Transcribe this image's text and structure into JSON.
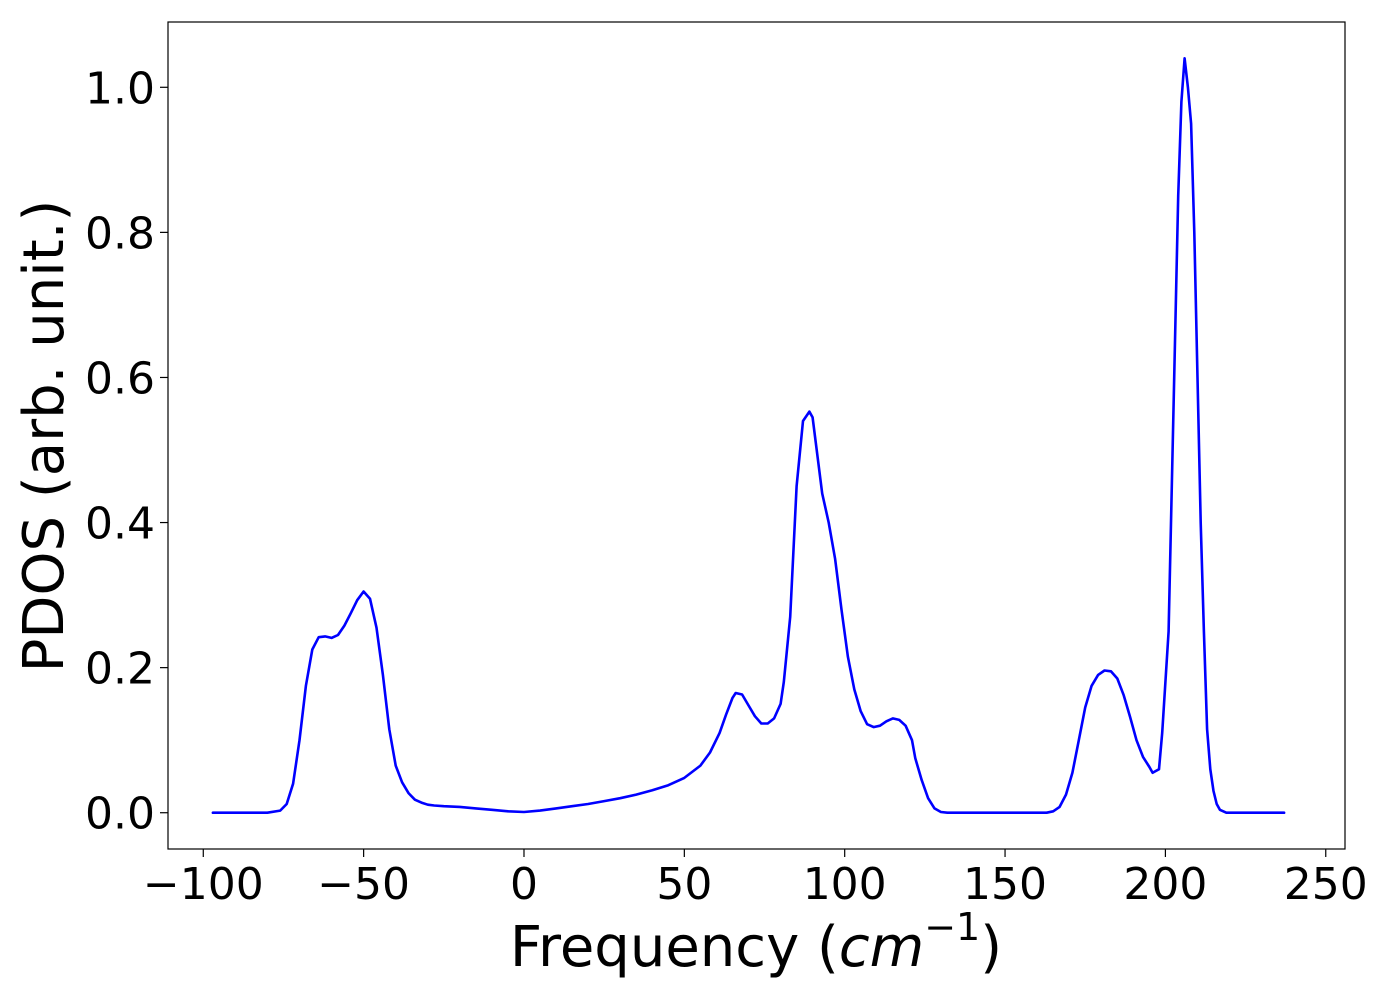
{
  "chart_data": {
    "type": "line",
    "title": "",
    "xlabel": {
      "prefix": "Frequency (",
      "unit": "cm",
      "superscript": "−1",
      "suffix": ")"
    },
    "ylabel": "PDOS (arb. unit.)",
    "xlim": [
      -111,
      256
    ],
    "ylim": [
      -0.05,
      1.09
    ],
    "xticks": [
      -100,
      -50,
      0,
      50,
      100,
      150,
      200,
      250
    ],
    "xtick_labels": [
      "−100",
      "−50",
      "0",
      "50",
      "100",
      "150",
      "200",
      "250"
    ],
    "yticks": [
      0.0,
      0.2,
      0.4,
      0.6,
      0.8,
      1.0
    ],
    "ytick_labels": [
      "0.0",
      "0.2",
      "0.4",
      "0.6",
      "0.8",
      "1.0"
    ],
    "grid": false,
    "legend": false,
    "series": [
      {
        "color": "#0000ff",
        "x": [
          -97,
          -80,
          -76,
          -74,
          -72,
          -70,
          -68,
          -66,
          -64,
          -62,
          -60,
          -58,
          -56,
          -54,
          -52,
          -50,
          -48,
          -46,
          -44,
          -42,
          -40,
          -38,
          -36,
          -34,
          -32,
          -30,
          -28,
          -25,
          -20,
          -15,
          -10,
          -5,
          0,
          5,
          10,
          15,
          20,
          25,
          30,
          35,
          40,
          45,
          50,
          55,
          58,
          61,
          63,
          65,
          66,
          68,
          70,
          72,
          74,
          76,
          78,
          80,
          81,
          83,
          85,
          87,
          89,
          90,
          91,
          93,
          95,
          97,
          99,
          101,
          103,
          105,
          107,
          109,
          111,
          113,
          115,
          117,
          119,
          121,
          122,
          124,
          126,
          128,
          130,
          132,
          135,
          140,
          150,
          163,
          165,
          167,
          169,
          171,
          173,
          175,
          177,
          179,
          181,
          183,
          185,
          187,
          189,
          191,
          193,
          195,
          196,
          198,
          199,
          201,
          202,
          203,
          204,
          205,
          206,
          207,
          208,
          209,
          210,
          211,
          212,
          213,
          214,
          215,
          216,
          217,
          219,
          225,
          237
        ],
        "y": [
          0.0,
          0.0,
          0.003,
          0.012,
          0.04,
          0.1,
          0.175,
          0.225,
          0.242,
          0.243,
          0.241,
          0.245,
          0.258,
          0.275,
          0.293,
          0.305,
          0.295,
          0.255,
          0.19,
          0.115,
          0.065,
          0.042,
          0.027,
          0.018,
          0.014,
          0.011,
          0.01,
          0.009,
          0.008,
          0.006,
          0.004,
          0.002,
          0.001,
          0.003,
          0.006,
          0.009,
          0.012,
          0.016,
          0.02,
          0.025,
          0.031,
          0.038,
          0.048,
          0.065,
          0.083,
          0.11,
          0.135,
          0.158,
          0.165,
          0.163,
          0.148,
          0.133,
          0.123,
          0.123,
          0.13,
          0.15,
          0.18,
          0.27,
          0.45,
          0.54,
          0.553,
          0.545,
          0.51,
          0.44,
          0.4,
          0.35,
          0.28,
          0.215,
          0.17,
          0.14,
          0.122,
          0.118,
          0.12,
          0.126,
          0.13,
          0.128,
          0.12,
          0.1,
          0.075,
          0.045,
          0.02,
          0.006,
          0.001,
          0.0,
          0.0,
          0.0,
          0.0,
          0.0,
          0.002,
          0.008,
          0.025,
          0.055,
          0.1,
          0.145,
          0.175,
          0.19,
          0.196,
          0.195,
          0.185,
          0.162,
          0.132,
          0.1,
          0.077,
          0.063,
          0.055,
          0.06,
          0.11,
          0.25,
          0.45,
          0.65,
          0.85,
          0.98,
          1.04,
          1.0,
          0.95,
          0.8,
          0.6,
          0.4,
          0.25,
          0.115,
          0.06,
          0.03,
          0.012,
          0.004,
          0.0,
          0.0,
          0.0
        ]
      }
    ]
  }
}
